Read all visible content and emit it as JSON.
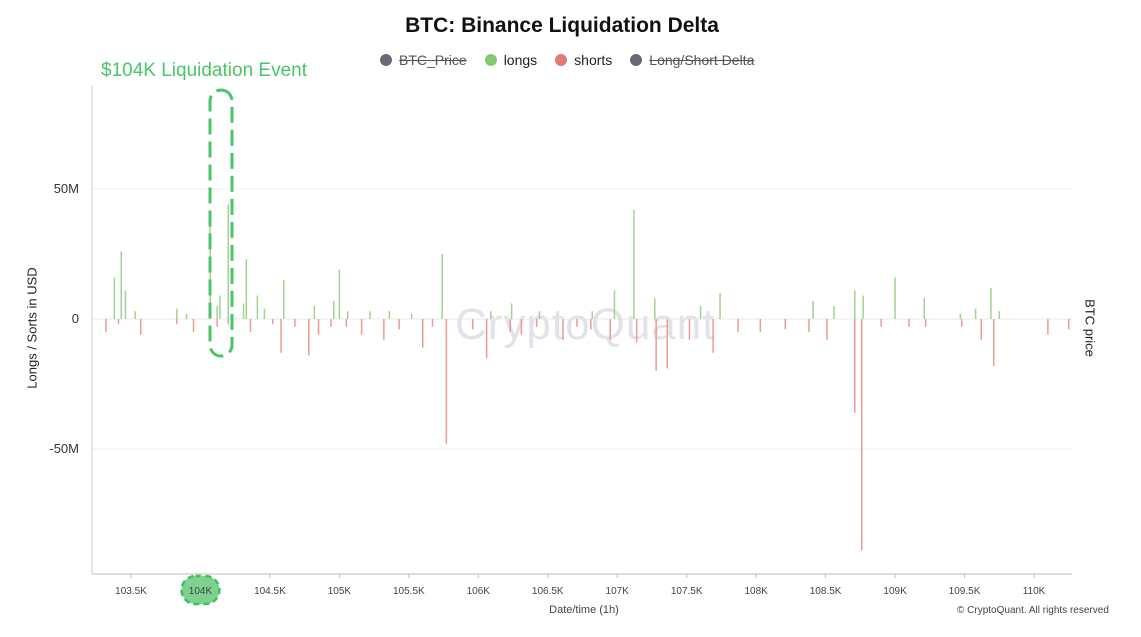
{
  "chart_data": {
    "type": "bar",
    "title": "BTC: Binance Liquidation Delta",
    "xlabel": "Date/time (1h)",
    "ylabel": "Longs / Sorts in USD",
    "y2label": "BTC price",
    "ylim": [
      -98,
      88
    ],
    "xlim": [
      103.25,
      110.25
    ],
    "yticks": [
      {
        "value": 50,
        "label": "50M"
      },
      {
        "value": 0,
        "label": "0"
      },
      {
        "value": -50,
        "label": "-50M"
      }
    ],
    "xticks": [
      {
        "value": 103.5,
        "label": "103.5K"
      },
      {
        "value": 104.0,
        "label": "104K"
      },
      {
        "value": 104.5,
        "label": "104.5K"
      },
      {
        "value": 105.0,
        "label": "105K"
      },
      {
        "value": 105.5,
        "label": "105.5K"
      },
      {
        "value": 106.0,
        "label": "106K"
      },
      {
        "value": 106.5,
        "label": "106.5K"
      },
      {
        "value": 107.0,
        "label": "107K"
      },
      {
        "value": 107.5,
        "label": "107.5K"
      },
      {
        "value": 108.0,
        "label": "108K"
      },
      {
        "value": 108.5,
        "label": "108.5K"
      },
      {
        "value": 109.0,
        "label": "109K"
      },
      {
        "value": 109.5,
        "label": "109.5K"
      },
      {
        "value": 110.0,
        "label": "110K"
      }
    ],
    "legend_position": "top-center",
    "legend": [
      {
        "name": "BTC_Price",
        "color": "#6b6b78",
        "hidden": true
      },
      {
        "name": "longs",
        "color": "#84c96e",
        "hidden": false
      },
      {
        "name": "shorts",
        "color": "#e07a72",
        "hidden": false
      },
      {
        "name": "Long/Short Delta",
        "color": "#6b6b78",
        "hidden": true
      }
    ],
    "grid": true,
    "series": [
      {
        "name": "longs",
        "color": "#9fd48e",
        "points": [
          [
            103.38,
            16
          ],
          [
            103.43,
            26
          ],
          [
            103.46,
            11
          ],
          [
            103.53,
            3
          ],
          [
            103.83,
            4
          ],
          [
            103.9,
            2
          ],
          [
            104.07,
            40
          ],
          [
            104.12,
            5
          ],
          [
            104.14,
            9
          ],
          [
            104.2,
            44
          ],
          [
            104.31,
            6
          ],
          [
            104.33,
            23
          ],
          [
            104.41,
            9
          ],
          [
            104.46,
            4
          ],
          [
            104.6,
            15
          ],
          [
            104.82,
            5
          ],
          [
            104.96,
            7
          ],
          [
            105.0,
            19
          ],
          [
            105.06,
            3
          ],
          [
            105.22,
            3
          ],
          [
            105.36,
            3
          ],
          [
            105.52,
            2
          ],
          [
            105.74,
            25
          ],
          [
            106.09,
            3
          ],
          [
            106.24,
            6
          ],
          [
            106.44,
            3
          ],
          [
            106.82,
            3
          ],
          [
            106.98,
            11
          ],
          [
            107.12,
            42
          ],
          [
            107.27,
            8
          ],
          [
            107.6,
            5
          ],
          [
            107.74,
            10
          ],
          [
            108.41,
            7
          ],
          [
            108.56,
            5
          ],
          [
            108.71,
            11
          ],
          [
            108.77,
            9
          ],
          [
            109.0,
            16
          ],
          [
            109.21,
            8
          ],
          [
            109.47,
            2
          ],
          [
            109.58,
            4
          ],
          [
            109.69,
            12
          ],
          [
            109.75,
            3
          ]
        ]
      },
      {
        "name": "shorts",
        "color": "#ec9b94",
        "points": [
          [
            103.32,
            -5
          ],
          [
            103.41,
            -2
          ],
          [
            103.57,
            -6
          ],
          [
            103.83,
            -2
          ],
          [
            103.95,
            -5
          ],
          [
            104.12,
            -3
          ],
          [
            104.2,
            -2
          ],
          [
            104.36,
            -5
          ],
          [
            104.52,
            -2
          ],
          [
            104.58,
            -13
          ],
          [
            104.68,
            -3
          ],
          [
            104.78,
            -14
          ],
          [
            104.85,
            -6
          ],
          [
            104.94,
            -3
          ],
          [
            105.05,
            -3
          ],
          [
            105.16,
            -6
          ],
          [
            105.32,
            -8
          ],
          [
            105.43,
            -4
          ],
          [
            105.6,
            -11
          ],
          [
            105.67,
            -3
          ],
          [
            105.77,
            -48
          ],
          [
            105.96,
            -4
          ],
          [
            106.06,
            -15
          ],
          [
            106.23,
            -5
          ],
          [
            106.31,
            -6
          ],
          [
            106.42,
            -3
          ],
          [
            106.61,
            -8
          ],
          [
            106.71,
            -3
          ],
          [
            106.81,
            -4
          ],
          [
            106.95,
            -8
          ],
          [
            107.14,
            -9
          ],
          [
            107.28,
            -20
          ],
          [
            107.36,
            -19
          ],
          [
            107.52,
            -8
          ],
          [
            107.69,
            -13
          ],
          [
            107.87,
            -5
          ],
          [
            108.03,
            -5
          ],
          [
            108.21,
            -4
          ],
          [
            108.38,
            -5
          ],
          [
            108.51,
            -8
          ],
          [
            108.71,
            -36
          ],
          [
            108.76,
            -89
          ],
          [
            108.9,
            -3
          ],
          [
            109.1,
            -3
          ],
          [
            109.22,
            -3
          ],
          [
            109.48,
            -3
          ],
          [
            109.62,
            -8
          ],
          [
            109.71,
            -18
          ],
          [
            110.1,
            -6
          ],
          [
            110.25,
            -4
          ]
        ]
      }
    ]
  },
  "annotation": {
    "label": "$104K Liquidation Event",
    "color": "#4cc46a"
  },
  "watermark": "CryptoQuant",
  "copyright": "© CryptoQuant. All rights reserved"
}
